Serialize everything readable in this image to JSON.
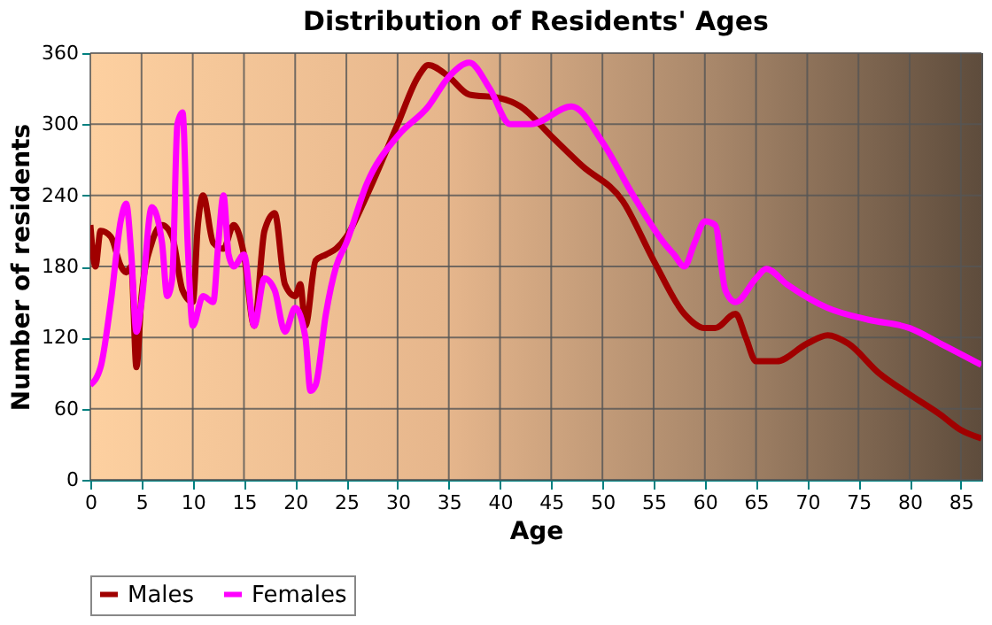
{
  "chart_data": {
    "type": "line",
    "title": "Distribution of Residents' Ages",
    "xlabel": "Age",
    "ylabel": "Number of residents",
    "xlim": [
      0,
      87
    ],
    "xticks": [
      0,
      5,
      10,
      15,
      20,
      25,
      30,
      35,
      40,
      45,
      50,
      55,
      60,
      65,
      70,
      75,
      80,
      85
    ],
    "ylim": [
      0,
      360
    ],
    "yticks": [
      0,
      60,
      120,
      180,
      240,
      300,
      360
    ],
    "grid": true,
    "legend": "bottom",
    "line_style": "solid",
    "marker": "none",
    "series": [
      {
        "name": "Males",
        "color": "#a00000",
        "x": [
          0,
          0.5,
          1,
          2,
          3,
          3.5,
          4,
          4.5,
          5,
          6,
          7,
          8,
          9,
          10,
          10.5,
          11,
          12,
          13,
          14,
          15,
          16,
          17,
          18,
          19,
          20,
          20.5,
          21,
          22,
          23,
          24,
          25,
          27,
          30,
          32,
          33,
          35,
          37,
          40,
          42,
          45,
          48,
          52,
          55,
          58,
          60,
          61,
          63,
          64,
          65,
          67,
          70,
          72,
          74,
          77,
          80,
          83,
          85,
          87
        ],
        "values": [
          215,
          180,
          210,
          205,
          180,
          175,
          180,
          95,
          155,
          200,
          215,
          205,
          160,
          150,
          215,
          240,
          200,
          195,
          215,
          190,
          130,
          210,
          225,
          165,
          155,
          165,
          130,
          185,
          190,
          195,
          205,
          240,
          300,
          340,
          350,
          340,
          325,
          322,
          315,
          290,
          265,
          235,
          185,
          140,
          128,
          128,
          140,
          120,
          100,
          100,
          115,
          122,
          115,
          90,
          72,
          55,
          42,
          35
        ]
      },
      {
        "name": "Females",
        "color": "#ff00ff",
        "x": [
          0,
          1,
          2,
          3,
          3.5,
          4,
          4.5,
          5,
          6,
          7,
          7.5,
          8,
          8.5,
          9,
          9.5,
          10,
          11,
          12,
          12.5,
          13,
          13.5,
          14,
          15,
          16,
          17,
          18,
          19,
          20,
          21,
          21.5,
          22,
          23,
          24,
          25,
          27,
          30,
          33,
          35,
          37,
          39,
          41,
          43,
          47,
          50,
          53,
          56,
          57,
          58,
          59,
          60,
          61,
          62,
          63,
          65,
          66,
          68,
          72,
          76,
          80,
          83,
          87
        ],
        "values": [
          80,
          95,
          150,
          220,
          233,
          190,
          125,
          150,
          230,
          200,
          155,
          170,
          300,
          310,
          200,
          130,
          155,
          150,
          200,
          240,
          190,
          180,
          190,
          130,
          170,
          160,
          125,
          145,
          120,
          75,
          80,
          140,
          180,
          200,
          250,
          290,
          315,
          340,
          352,
          330,
          300,
          300,
          315,
          285,
          240,
          200,
          190,
          180,
          200,
          218,
          215,
          160,
          150,
          170,
          178,
          165,
          145,
          135,
          128,
          115,
          97
        ]
      }
    ]
  }
}
